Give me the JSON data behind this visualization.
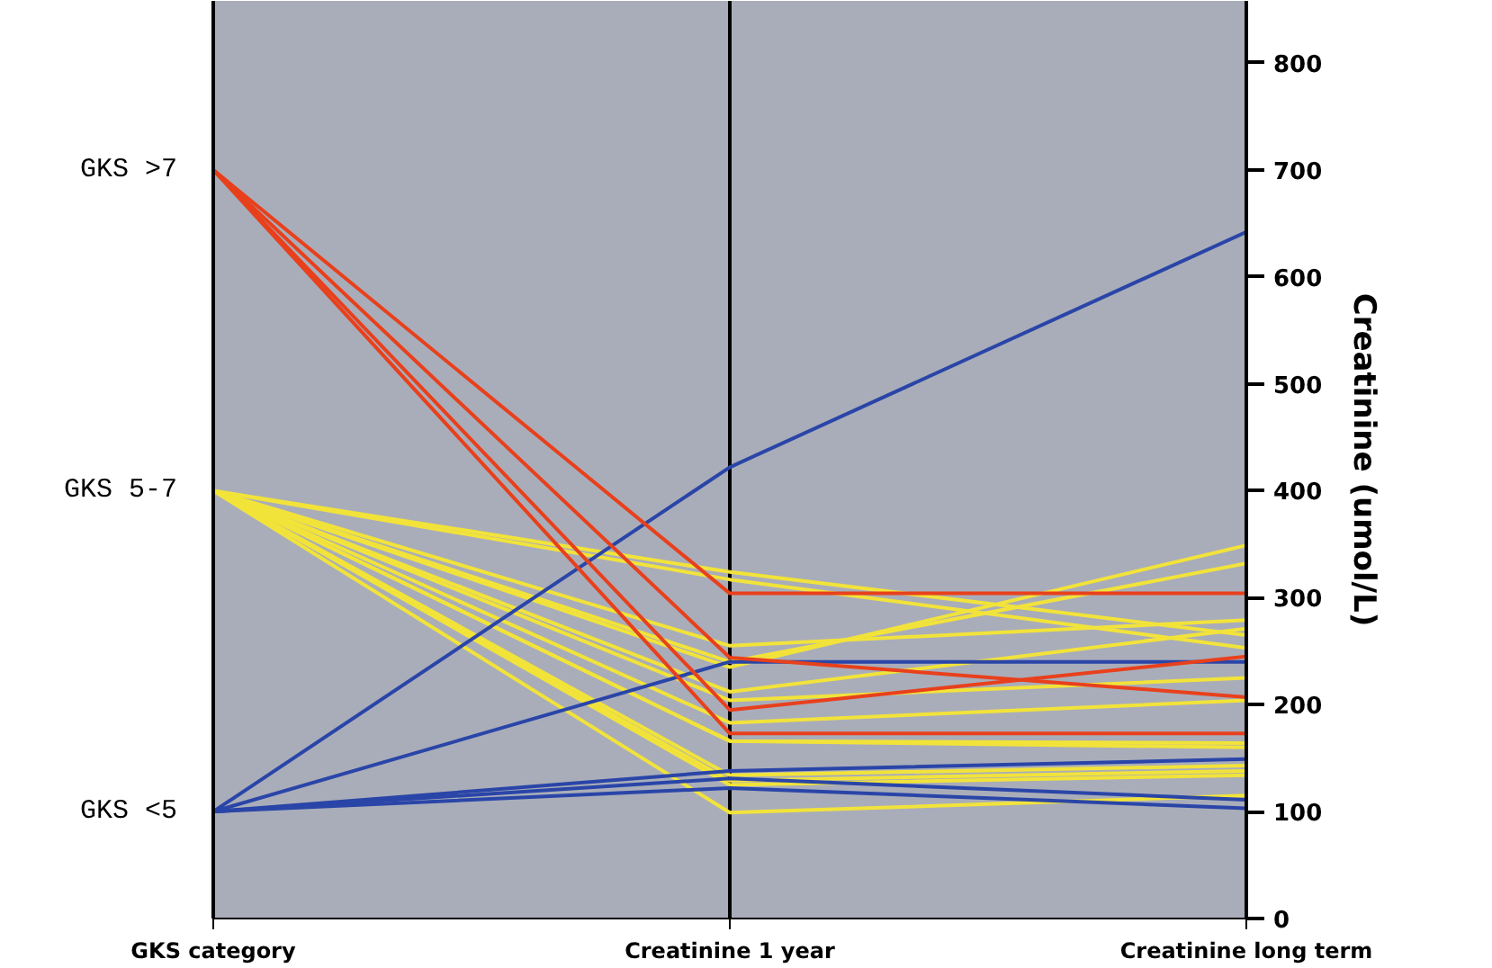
{
  "chart_data": {
    "type": "line",
    "categories": [
      "GKS category",
      "Creatinine 1 year",
      "Creatinine long term"
    ],
    "ylim": [
      0,
      858
    ],
    "yticks": [
      0,
      100,
      200,
      300,
      400,
      500,
      600,
      700,
      800
    ],
    "ylabel": "Creatinine (umol/L)",
    "annotations": [
      {
        "text": "GKS <5",
        "x": "GKS category",
        "y": 100
      },
      {
        "text": "GKS 5-7",
        "x": "GKS category",
        "y": 400
      },
      {
        "text": "GKS >7",
        "x": "GKS category",
        "y": 700
      }
    ],
    "grid": "x",
    "line_style": "solid",
    "series": [
      {
        "color": "#f2e33a",
        "values": [
          400,
          324,
          265
        ]
      },
      {
        "color": "#f2e33a",
        "values": [
          400,
          317,
          253
        ]
      },
      {
        "color": "#f2e33a",
        "values": [
          400,
          235,
          349
        ]
      },
      {
        "color": "#f2e33a",
        "values": [
          400,
          240,
          332
        ]
      },
      {
        "color": "#f2e33a",
        "values": [
          400,
          255,
          279
        ]
      },
      {
        "color": "#f2e33a",
        "values": [
          400,
          212,
          271
        ]
      },
      {
        "color": "#f2e33a",
        "values": [
          400,
          204,
          225
        ]
      },
      {
        "color": "#f2e33a",
        "values": [
          400,
          183,
          204
        ]
      },
      {
        "color": "#f2e33a",
        "values": [
          400,
          166,
          160
        ]
      },
      {
        "color": "#f2e33a",
        "values": [
          400,
          166,
          164
        ]
      },
      {
        "color": "#f2e33a",
        "values": [
          400,
          134,
          143
        ]
      },
      {
        "color": "#f2e33a",
        "values": [
          400,
          129,
          138
        ]
      },
      {
        "color": "#f2e33a",
        "values": [
          400,
          125,
          134
        ]
      },
      {
        "color": "#f2e33a",
        "values": [
          400,
          99,
          115
        ]
      },
      {
        "color": "#2a45a8",
        "values": [
          100,
          138,
          149
        ]
      },
      {
        "color": "#2a45a8",
        "values": [
          100,
          131,
          111
        ]
      },
      {
        "color": "#2a45a8",
        "values": [
          100,
          122,
          103
        ]
      },
      {
        "color": "#2a45a8",
        "values": [
          100,
          240,
          240
        ]
      },
      {
        "color": "#2a45a8",
        "values": [
          100,
          422,
          642
        ]
      },
      {
        "color": "#e8401c",
        "values": [
          700,
          304,
          304
        ]
      },
      {
        "color": "#e8401c",
        "values": [
          700,
          244,
          207
        ]
      },
      {
        "color": "#e8401c",
        "values": [
          700,
          195,
          245
        ]
      },
      {
        "color": "#e8401c",
        "values": [
          700,
          173,
          173
        ]
      }
    ]
  }
}
